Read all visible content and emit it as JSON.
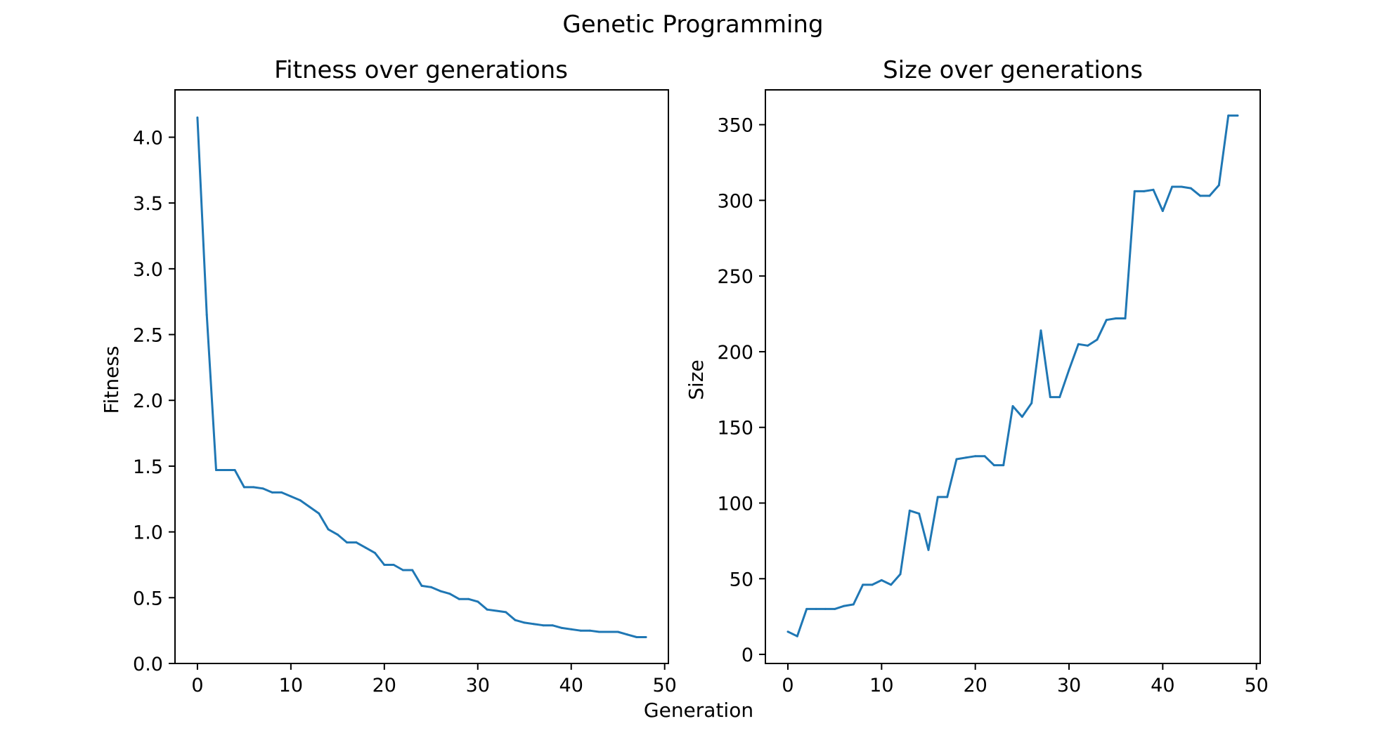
{
  "figure": {
    "title": "Genetic Programming",
    "shared_xlabel": "Generation"
  },
  "colors": {
    "series": "#1f77b4",
    "axes": "#000000",
    "background": "#ffffff"
  },
  "chart_data": [
    {
      "type": "line",
      "title": "Fitness over generations",
      "xlabel": "Generation",
      "ylabel": "Fitness",
      "xlim": [
        -2.4,
        50.4
      ],
      "ylim": [
        0,
        4.36
      ],
      "xticks": [
        0,
        10,
        20,
        30,
        40,
        50
      ],
      "yticks": [
        0.0,
        0.5,
        1.0,
        1.5,
        2.0,
        2.5,
        3.0,
        3.5,
        4.0
      ],
      "ytick_labels": [
        "0.0",
        "0.5",
        "1.0",
        "1.5",
        "2.0",
        "2.5",
        "3.0",
        "3.5",
        "4.0"
      ],
      "grid": false,
      "x": [
        0,
        1,
        2,
        3,
        4,
        5,
        6,
        7,
        8,
        9,
        10,
        11,
        12,
        13,
        14,
        15,
        16,
        17,
        18,
        19,
        20,
        21,
        22,
        23,
        24,
        25,
        26,
        27,
        28,
        29,
        30,
        31,
        32,
        33,
        34,
        35,
        36,
        37,
        38,
        39,
        40,
        41,
        42,
        43,
        44,
        45,
        46,
        47,
        48
      ],
      "y": [
        4.15,
        2.65,
        1.47,
        1.47,
        1.47,
        1.34,
        1.34,
        1.33,
        1.3,
        1.3,
        1.27,
        1.24,
        1.19,
        1.14,
        1.02,
        0.98,
        0.92,
        0.92,
        0.88,
        0.84,
        0.75,
        0.75,
        0.71,
        0.71,
        0.59,
        0.58,
        0.55,
        0.53,
        0.49,
        0.49,
        0.47,
        0.41,
        0.4,
        0.39,
        0.33,
        0.31,
        0.3,
        0.29,
        0.29,
        0.27,
        0.26,
        0.25,
        0.25,
        0.24,
        0.24,
        0.24,
        0.22,
        0.2,
        0.2
      ]
    },
    {
      "type": "line",
      "title": "Size over generations",
      "xlabel": "Generation",
      "ylabel": "Size",
      "xlim": [
        -2.4,
        50.4
      ],
      "ylim": [
        -6,
        373
      ],
      "xticks": [
        0,
        10,
        20,
        30,
        40,
        50
      ],
      "yticks": [
        0,
        50,
        100,
        150,
        200,
        250,
        300,
        350
      ],
      "ytick_labels": [
        "0",
        "50",
        "100",
        "150",
        "200",
        "250",
        "300",
        "350"
      ],
      "grid": false,
      "x": [
        0,
        1,
        2,
        3,
        4,
        5,
        6,
        7,
        8,
        9,
        10,
        11,
        12,
        13,
        14,
        15,
        16,
        17,
        18,
        19,
        20,
        21,
        22,
        23,
        24,
        25,
        26,
        27,
        28,
        29,
        30,
        31,
        32,
        33,
        34,
        35,
        36,
        37,
        38,
        39,
        40,
        41,
        42,
        43,
        44,
        45,
        46,
        47,
        48
      ],
      "y": [
        15,
        12,
        30,
        30,
        30,
        30,
        32,
        33,
        46,
        46,
        49,
        46,
        53,
        95,
        93,
        69,
        104,
        104,
        129,
        130,
        131,
        131,
        125,
        125,
        164,
        157,
        166,
        214,
        170,
        170,
        188,
        205,
        204,
        208,
        221,
        222,
        222,
        306,
        306,
        307,
        293,
        309,
        309,
        308,
        303,
        303,
        310,
        356,
        356
      ]
    }
  ]
}
